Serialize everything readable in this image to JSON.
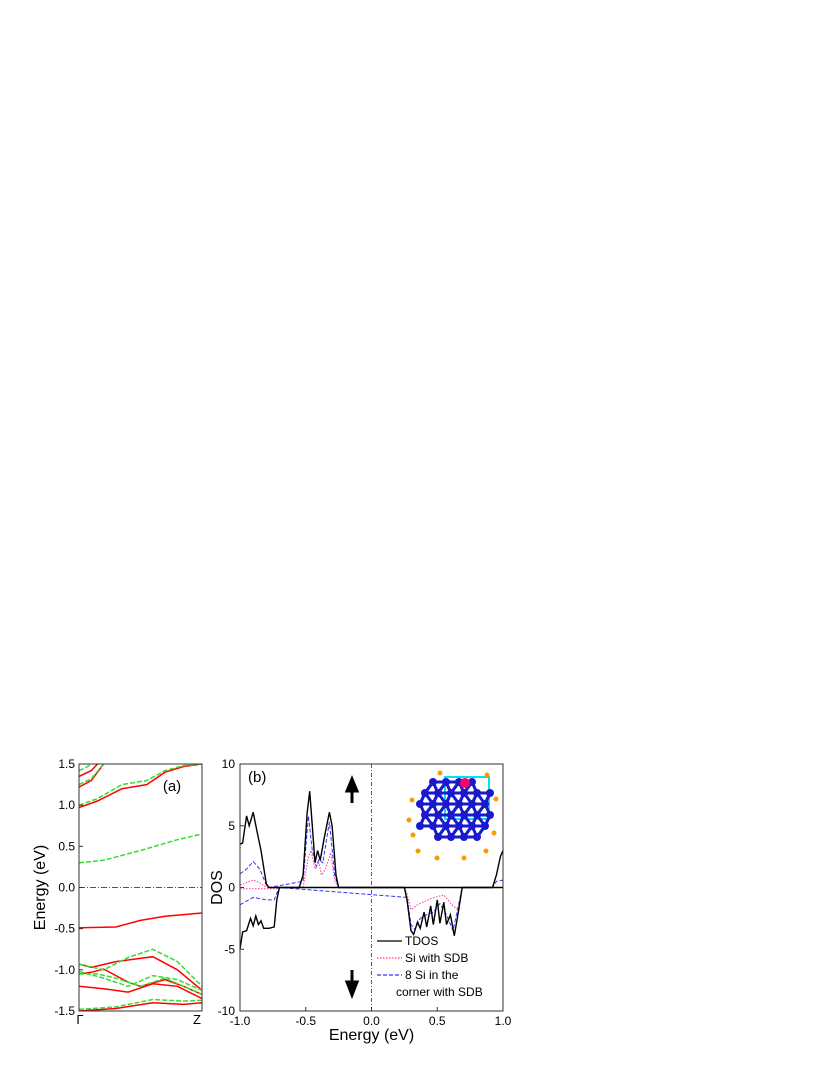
{
  "chart_data": [
    {
      "panel_label": "(a)",
      "type": "line",
      "ylabel": "Energy (eV)",
      "ylim": [
        -1.5,
        1.5
      ],
      "yticks": [
        "-1.5",
        "-1.0",
        "-0.5",
        "0.0",
        "0.5",
        "1.0",
        "1.5"
      ],
      "xticks": [
        "Γ",
        "Z"
      ],
      "fermi_level": 0.0,
      "colors": {
        "red": "#ff0000",
        "green": "#33dd33"
      },
      "series": [
        {
          "style": "solid-red",
          "bands": [
            [
              [
                0,
                -0.49
              ],
              [
                0.3,
                -0.48
              ],
              [
                0.5,
                -0.4
              ],
              [
                0.7,
                -0.35
              ],
              [
                1,
                -0.31
              ]
            ],
            [
              [
                0,
                0.97
              ],
              [
                0.15,
                1.05
              ],
              [
                0.35,
                1.2
              ],
              [
                0.55,
                1.25
              ],
              [
                0.7,
                1.4
              ],
              [
                0.85,
                1.47
              ],
              [
                1,
                1.5
              ]
            ],
            [
              [
                0,
                1.22
              ],
              [
                0.1,
                1.3
              ],
              [
                0.2,
                1.5
              ]
            ],
            [
              [
                0,
                1.35
              ],
              [
                0.1,
                1.42
              ],
              [
                0.15,
                1.5
              ]
            ],
            [
              [
                0,
                -0.93
              ],
              [
                0.1,
                -0.97
              ],
              [
                0.3,
                -0.9
              ],
              [
                0.6,
                -0.84
              ],
              [
                0.8,
                -1.0
              ],
              [
                1,
                -1.25
              ]
            ],
            [
              [
                0,
                -1.05
              ],
              [
                0.1,
                -1.03
              ],
              [
                0.2,
                -0.99
              ],
              [
                0.4,
                -1.15
              ],
              [
                0.5,
                -1.2
              ],
              [
                0.7,
                -1.12
              ],
              [
                0.85,
                -1.2
              ],
              [
                1,
                -1.3
              ]
            ],
            [
              [
                0,
                -1.2
              ],
              [
                0.2,
                -1.23
              ],
              [
                0.4,
                -1.27
              ],
              [
                0.6,
                -1.17
              ],
              [
                0.8,
                -1.2
              ],
              [
                1,
                -1.35
              ]
            ],
            [
              [
                0,
                -1.5
              ],
              [
                0.3,
                -1.47
              ],
              [
                0.6,
                -1.4
              ],
              [
                0.85,
                -1.42
              ],
              [
                1,
                -1.4
              ]
            ]
          ]
        },
        {
          "style": "dashed-green",
          "bands": [
            [
              [
                0,
                0.3
              ],
              [
                0.2,
                0.33
              ],
              [
                0.5,
                0.45
              ],
              [
                0.8,
                0.58
              ],
              [
                1,
                0.65
              ]
            ],
            [
              [
                0,
                1.0
              ],
              [
                0.15,
                1.08
              ],
              [
                0.35,
                1.25
              ],
              [
                0.55,
                1.3
              ],
              [
                0.7,
                1.42
              ],
              [
                0.85,
                1.48
              ],
              [
                1,
                1.5
              ]
            ],
            [
              [
                0,
                1.25
              ],
              [
                0.1,
                1.32
              ],
              [
                0.2,
                1.5
              ]
            ],
            [
              [
                0,
                1.42
              ],
              [
                0.05,
                1.45
              ],
              [
                0.1,
                1.5
              ]
            ],
            [
              [
                0,
                -0.93
              ],
              [
                0.2,
                -1.0
              ],
              [
                0.4,
                -0.85
              ],
              [
                0.6,
                -0.75
              ],
              [
                0.8,
                -0.9
              ],
              [
                1,
                -1.2
              ]
            ],
            [
              [
                0,
                -1.02
              ],
              [
                0.2,
                -1.1
              ],
              [
                0.4,
                -1.2
              ],
              [
                0.6,
                -1.07
              ],
              [
                0.8,
                -1.12
              ],
              [
                1,
                -1.25
              ]
            ],
            [
              [
                0,
                -1.05
              ],
              [
                0.15,
                -1.05
              ],
              [
                0.3,
                -1.1
              ],
              [
                0.5,
                -1.2
              ],
              [
                0.7,
                -1.1
              ],
              [
                1,
                -1.3
              ]
            ],
            [
              [
                0,
                -1.48
              ],
              [
                0.3,
                -1.45
              ],
              [
                0.6,
                -1.36
              ],
              [
                0.85,
                -1.38
              ],
              [
                1,
                -1.37
              ]
            ]
          ]
        }
      ]
    },
    {
      "panel_label": "(b)",
      "type": "line",
      "xlabel": "Energy (eV)",
      "ylabel": "DOS",
      "xlim": [
        -1.0,
        1.0
      ],
      "ylim": [
        -10,
        10
      ],
      "xticks": [
        "-1.0",
        "-0.5",
        "0.0",
        "0.5",
        "1.0"
      ],
      "yticks": [
        "-10",
        "-5",
        "0",
        "5",
        "10"
      ],
      "legend_position": "bottom-right",
      "spin_up_arrow": "arrow-up-icon",
      "spin_down_arrow": "arrow-down-icon",
      "series": [
        {
          "name": "TDOS",
          "color": "#000000",
          "style": "solid",
          "up": [
            [
              -1,
              3.5
            ],
            [
              -0.98,
              3.6
            ],
            [
              -0.95,
              5.8
            ],
            [
              -0.93,
              5.0
            ],
            [
              -0.9,
              6.1
            ],
            [
              -0.87,
              4.5
            ],
            [
              -0.84,
              3.0
            ],
            [
              -0.8,
              0.3
            ],
            [
              -0.78,
              0
            ],
            [
              -0.55,
              0
            ],
            [
              -0.52,
              1
            ],
            [
              -0.49,
              6
            ],
            [
              -0.47,
              7.8
            ],
            [
              -0.45,
              5
            ],
            [
              -0.43,
              2
            ],
            [
              -0.41,
              3
            ],
            [
              -0.39,
              2.2
            ],
            [
              -0.36,
              4
            ],
            [
              -0.32,
              6.1
            ],
            [
              -0.3,
              5
            ],
            [
              -0.27,
              1
            ],
            [
              -0.25,
              0
            ],
            [
              0.92,
              0
            ],
            [
              0.95,
              1
            ],
            [
              0.98,
              2.5
            ],
            [
              1,
              3
            ]
          ],
          "down": [
            [
              -1,
              -5
            ],
            [
              -0.98,
              -3.6
            ],
            [
              -0.95,
              -3.5
            ],
            [
              -0.92,
              -2.5
            ],
            [
              -0.9,
              -3.1
            ],
            [
              -0.88,
              -2.3
            ],
            [
              -0.86,
              -3.0
            ],
            [
              -0.84,
              -2.7
            ],
            [
              -0.82,
              -3.3
            ],
            [
              -0.78,
              -3.3
            ],
            [
              -0.74,
              -3.2
            ],
            [
              -0.72,
              -1
            ],
            [
              -0.7,
              0
            ],
            [
              0.25,
              0
            ],
            [
              0.27,
              -1
            ],
            [
              0.3,
              -3.5
            ],
            [
              0.32,
              -3.8
            ],
            [
              0.35,
              -2.8
            ],
            [
              0.37,
              -3.3
            ],
            [
              0.4,
              -2.0
            ],
            [
              0.42,
              -3.2
            ],
            [
              0.45,
              -1.5
            ],
            [
              0.47,
              -3
            ],
            [
              0.5,
              -1.0
            ],
            [
              0.52,
              -2.9
            ],
            [
              0.55,
              -1.2
            ],
            [
              0.57,
              -3
            ],
            [
              0.6,
              -2.2
            ],
            [
              0.63,
              -3.9
            ],
            [
              0.66,
              -2
            ],
            [
              0.69,
              0
            ],
            [
              1,
              0
            ]
          ]
        },
        {
          "name": "Si with SDB",
          "color": "#ff3399",
          "style": "dotted",
          "up": [
            [
              -1,
              0.2
            ],
            [
              -0.9,
              0.6
            ],
            [
              -0.85,
              0.4
            ],
            [
              -0.8,
              0
            ],
            [
              -0.52,
              0
            ],
            [
              -0.48,
              2.5
            ],
            [
              -0.46,
              3
            ],
            [
              -0.43,
              1.5
            ],
            [
              -0.4,
              2
            ],
            [
              -0.38,
              1.0
            ],
            [
              -0.35,
              1.5
            ],
            [
              -0.31,
              2.8
            ],
            [
              -0.28,
              0.5
            ],
            [
              -0.25,
              0
            ],
            [
              1,
              0
            ]
          ],
          "down": [
            [
              -1,
              -0.1
            ],
            [
              -0.72,
              -0.1
            ],
            [
              -0.7,
              0
            ],
            [
              0.25,
              0
            ],
            [
              0.27,
              -0.5
            ],
            [
              0.3,
              -1.8
            ],
            [
              0.35,
              -1.4
            ],
            [
              0.45,
              -0.9
            ],
            [
              0.55,
              -0.6
            ],
            [
              0.62,
              -1.5
            ],
            [
              0.66,
              -1.8
            ],
            [
              0.69,
              0
            ],
            [
              1,
              0
            ]
          ]
        },
        {
          "name": "8 Si in the corner with SDB",
          "name_lines": [
            "8 Si in the",
            "corner with SDB"
          ],
          "color": "#3333ff",
          "style": "dashed",
          "up": [
            [
              -1,
              1.1
            ],
            [
              -0.95,
              1.5
            ],
            [
              -0.9,
              2.1
            ],
            [
              -0.85,
              1.5
            ],
            [
              -0.8,
              0.2
            ],
            [
              -0.78,
              0
            ],
            [
              -0.52,
              0.5
            ],
            [
              -0.48,
              5.8
            ],
            [
              -0.45,
              3
            ],
            [
              -0.42,
              1.7
            ],
            [
              -0.4,
              2.3
            ],
            [
              -0.37,
              2.0
            ],
            [
              -0.32,
              5.3
            ],
            [
              -0.28,
              1
            ],
            [
              -0.25,
              0
            ],
            [
              0.92,
              0
            ],
            [
              0.95,
              0.5
            ],
            [
              1,
              0.6
            ]
          ],
          "down": [
            [
              -1,
              -1.4
            ],
            [
              -0.95,
              -1.1
            ],
            [
              -0.9,
              -0.8
            ],
            [
              -0.85,
              -0.9
            ],
            [
              -0.8,
              -1.0
            ],
            [
              -0.74,
              -1.0
            ],
            [
              -0.71,
              -0.2
            ],
            [
              -0.7,
              0
            ],
            [
              0.27,
              -0.8
            ],
            [
              0.3,
              -3
            ],
            [
              0.33,
              -3.4
            ],
            [
              0.37,
              -2.5
            ],
            [
              0.42,
              -2.2
            ],
            [
              0.47,
              -2.0
            ],
            [
              0.52,
              -1.3
            ],
            [
              0.57,
              -2.2
            ],
            [
              0.62,
              -3.5
            ],
            [
              0.65,
              -2
            ],
            [
              0.69,
              0
            ],
            [
              1,
              0
            ]
          ]
        }
      ],
      "inset": {
        "atom_colors": {
          "si": "#1a1acc",
          "h": "#ff9900",
          "defect": "#ff0066",
          "cell": "#00e5ee"
        }
      }
    }
  ]
}
